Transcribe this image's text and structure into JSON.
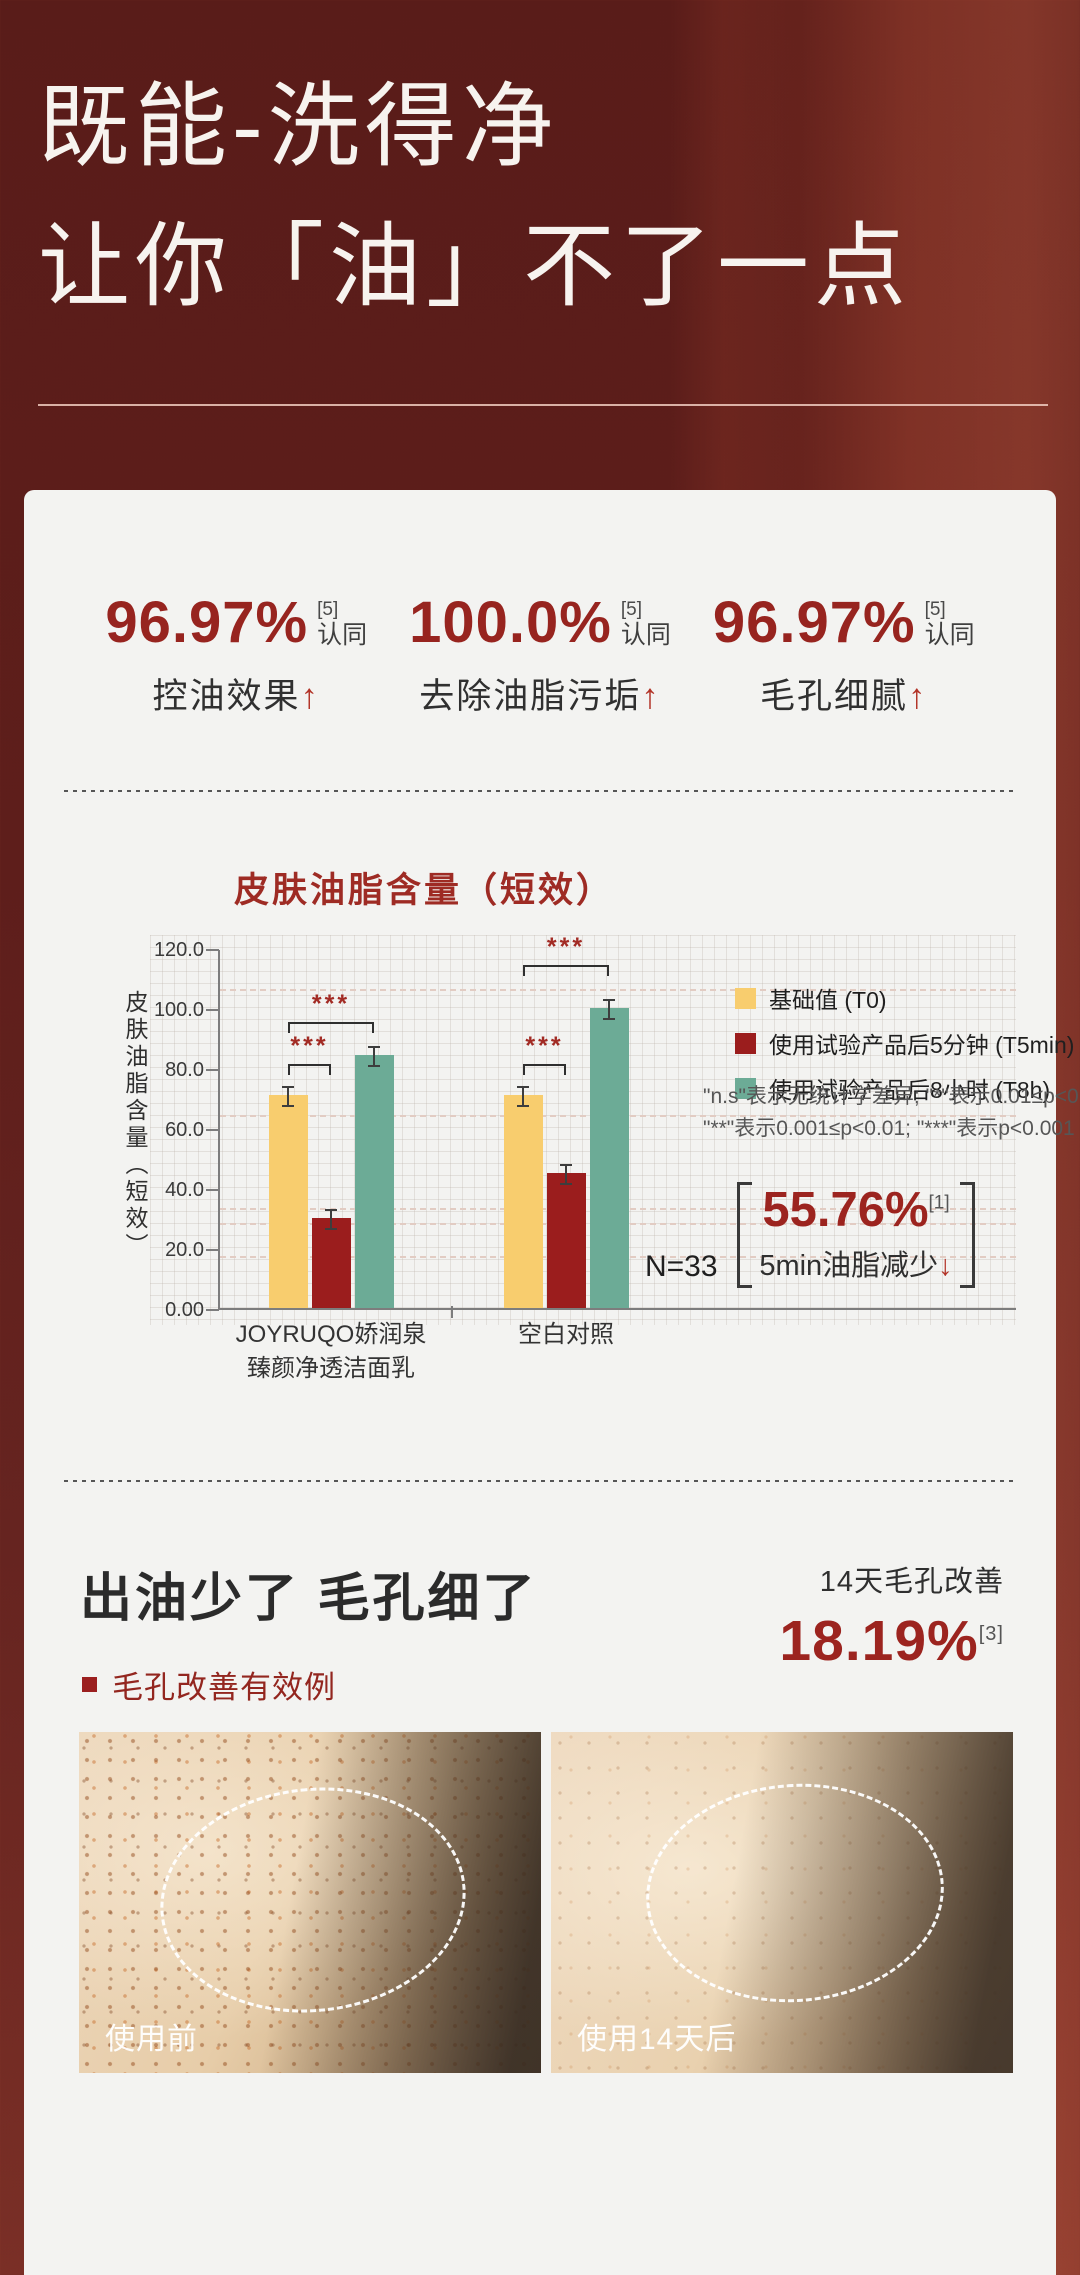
{
  "header": {
    "title_line1": "既能-洗得净",
    "title_line2": "让你「油」不了一点"
  },
  "stats": {
    "items": [
      {
        "value": "96.97%",
        "sup": "[5]",
        "agree": "认同",
        "label": "控油效果",
        "arrow": "↑"
      },
      {
        "value": "100.0%",
        "sup": "[5]",
        "agree": "认同",
        "label": "去除油脂污垢",
        "arrow": "↑"
      },
      {
        "value": "96.97%",
        "sup": "[5]",
        "agree": "认同",
        "label": "毛孔细腻",
        "arrow": "↑"
      }
    ]
  },
  "chart_data": {
    "type": "bar",
    "title": "皮肤油脂含量（短效）",
    "ylabel": "皮肤油脂含量（短效）",
    "ylim": [
      0,
      120
    ],
    "yticks": [
      "120.0",
      "100.0",
      "80.0",
      "60.0",
      "40.0",
      "20.0",
      "0.00"
    ],
    "grid": true,
    "legend_position": "right",
    "categories": [
      [
        "JOYRUQO娇润泉",
        "臻颜净透洁面乳"
      ],
      [
        "空白对照"
      ]
    ],
    "series": [
      {
        "name": "基础值 (T0)",
        "color": "#f8cd6e",
        "values": [
          71,
          71
        ]
      },
      {
        "name": "使用试验产品后5分钟 (T5min)",
        "color": "#9b1d1d",
        "values": [
          30,
          45
        ]
      },
      {
        "name": "使用试验产品后8小时 (T8h)",
        "color": "#6cab96",
        "values": [
          84.5,
          100
        ]
      }
    ],
    "ref_lines": [
      107,
      65,
      34,
      29,
      18
    ],
    "brackets": [
      {
        "group": 0,
        "from": 0,
        "to": 1,
        "y": 82,
        "label": "***"
      },
      {
        "group": 0,
        "from": 0,
        "to": 2,
        "y": 96,
        "label": "***"
      },
      {
        "group": 1,
        "from": 0,
        "to": 1,
        "y": 82,
        "label": "***"
      },
      {
        "group": 1,
        "from": 0,
        "to": 2,
        "y": 115,
        "label": "***"
      }
    ],
    "n_label": "N=33",
    "notes": [
      "\"n.s\"表示无统计学差异; \"*\"表示0.01≤p<0.05;",
      "\"**\"表示0.001≤p<0.01; \"***\"表示p<0.001"
    ]
  },
  "highlight": {
    "value": "55.76%",
    "sup": "[1]",
    "label": "5min油脂减少",
    "arrow": "↓"
  },
  "improve": {
    "heading": "出油少了 毛孔细了",
    "kicker": "14天毛孔改善",
    "value": "18.19%",
    "sup": "[3]",
    "bullet_label": "毛孔改善有效例",
    "before_label": "使用前",
    "after_label": "使用14天后"
  },
  "colors": {
    "header_bg": "#5d1d1a",
    "card_bg": "#f3f3f1",
    "accent_red": "#9c241f",
    "bar_yellow": "#f8cd6e",
    "bar_red": "#9b1d1d",
    "bar_teal": "#6cab96"
  }
}
